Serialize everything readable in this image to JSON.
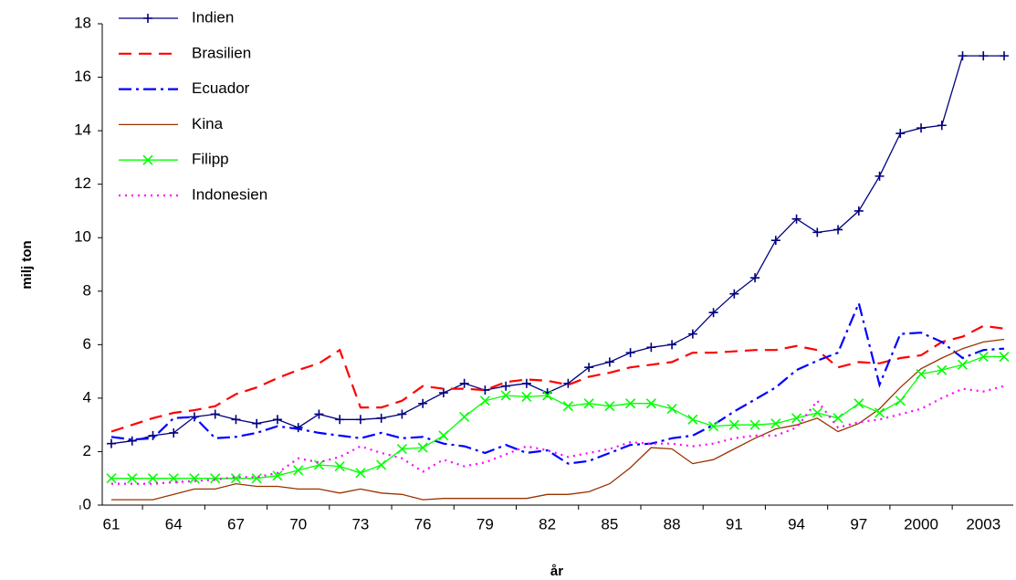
{
  "chart_data": {
    "type": "line",
    "xlabel": "år",
    "ylabel": "milj ton",
    "categories": [
      "61",
      null,
      null,
      "64",
      null,
      null,
      "67",
      null,
      null,
      "70",
      null,
      null,
      "73",
      null,
      null,
      "76",
      null,
      null,
      "79",
      null,
      null,
      "82",
      null,
      null,
      "85",
      null,
      null,
      "88",
      null,
      null,
      "91",
      null,
      null,
      "94",
      null,
      null,
      "97",
      null,
      null,
      "2000",
      null,
      null,
      "2003",
      null
    ],
    "ylim": [
      0,
      18
    ],
    "yticks": [
      0,
      2,
      4,
      6,
      8,
      10,
      12,
      14,
      16,
      18
    ],
    "grid": false,
    "legend": "upper left",
    "series": [
      {
        "name": "Indien",
        "color": "#000080",
        "marker": "plus",
        "dash": "none",
        "values": [
          2.3,
          2.4,
          2.6,
          2.7,
          3.3,
          3.4,
          3.2,
          3.05,
          3.2,
          2.9,
          3.4,
          3.2,
          3.2,
          3.25,
          3.4,
          3.8,
          4.2,
          4.55,
          4.3,
          4.45,
          4.55,
          4.2,
          4.55,
          5.15,
          5.35,
          5.7,
          5.9,
          6.0,
          6.4,
          7.2,
          7.9,
          8.5,
          9.9,
          10.7,
          10.2,
          10.3,
          11.0,
          12.3,
          13.9,
          14.1,
          14.2,
          16.8,
          16.8,
          16.8
        ]
      },
      {
        "name": "Brasilien",
        "color": "#ff0000",
        "marker": "none",
        "dash": "14,8",
        "values": [
          2.75,
          3.0,
          3.25,
          3.45,
          3.55,
          3.7,
          4.15,
          4.4,
          4.75,
          5.05,
          5.3,
          5.8,
          3.65,
          3.65,
          3.9,
          4.45,
          4.35,
          4.35,
          4.3,
          4.6,
          4.7,
          4.65,
          4.5,
          4.8,
          4.95,
          5.15,
          5.25,
          5.35,
          5.7,
          5.7,
          5.75,
          5.8,
          5.8,
          5.95,
          5.8,
          5.15,
          5.35,
          5.3,
          5.5,
          5.6,
          6.1,
          6.3,
          6.7,
          6.6
        ]
      },
      {
        "name": "Ecuador",
        "color": "#0000ff",
        "marker": "none",
        "dash": "14,5,3,5",
        "values": [
          2.55,
          2.45,
          2.5,
          3.25,
          3.3,
          2.5,
          2.55,
          2.7,
          2.95,
          2.85,
          2.7,
          2.6,
          2.5,
          2.7,
          2.5,
          2.55,
          2.3,
          2.2,
          1.95,
          2.25,
          1.95,
          2.05,
          1.55,
          1.65,
          1.95,
          2.25,
          2.3,
          2.5,
          2.6,
          3.0,
          3.5,
          3.95,
          4.4,
          5.05,
          5.4,
          5.7,
          7.55,
          4.5,
          6.4,
          6.45,
          6.1,
          5.5,
          5.8,
          5.85
        ]
      },
      {
        "name": "Kina",
        "color": "#993300",
        "marker": "none",
        "dash": "none",
        "values": [
          0.2,
          0.2,
          0.2,
          0.4,
          0.6,
          0.6,
          0.8,
          0.7,
          0.7,
          0.6,
          0.6,
          0.45,
          0.6,
          0.45,
          0.4,
          0.2,
          0.25,
          0.25,
          0.25,
          0.25,
          0.25,
          0.4,
          0.4,
          0.5,
          0.8,
          1.4,
          2.15,
          2.1,
          1.55,
          1.7,
          2.1,
          2.5,
          2.85,
          3.0,
          3.25,
          2.75,
          3.05,
          3.6,
          4.4,
          5.1,
          5.5,
          5.85,
          6.1,
          6.2
        ]
      },
      {
        "name": "Filipp",
        "color": "#00ff00",
        "marker": "x",
        "dash": "none",
        "values": [
          1.0,
          1.0,
          1.0,
          1.0,
          1.0,
          1.0,
          1.0,
          1.0,
          1.1,
          1.3,
          1.5,
          1.45,
          1.2,
          1.5,
          2.1,
          2.15,
          2.6,
          3.3,
          3.9,
          4.1,
          4.05,
          4.1,
          3.7,
          3.8,
          3.7,
          3.8,
          3.8,
          3.6,
          3.2,
          2.95,
          3.0,
          3.0,
          3.05,
          3.25,
          3.45,
          3.25,
          3.8,
          3.45,
          3.9,
          4.9,
          5.05,
          5.25,
          5.55,
          5.55
        ]
      },
      {
        "name": "Indonesien",
        "color": "#ff00ff",
        "marker": "none",
        "dash": "2,5",
        "values": [
          0.8,
          0.8,
          0.8,
          0.85,
          0.9,
          0.95,
          1.05,
          1.05,
          1.2,
          1.75,
          1.6,
          1.8,
          2.2,
          1.95,
          1.75,
          1.25,
          1.7,
          1.45,
          1.6,
          1.9,
          2.2,
          2.05,
          1.8,
          1.95,
          2.1,
          2.35,
          2.3,
          2.3,
          2.2,
          2.3,
          2.5,
          2.6,
          2.6,
          2.9,
          3.9,
          2.9,
          3.1,
          3.2,
          3.4,
          3.6,
          4.0,
          4.35,
          4.25,
          4.45
        ]
      }
    ]
  }
}
